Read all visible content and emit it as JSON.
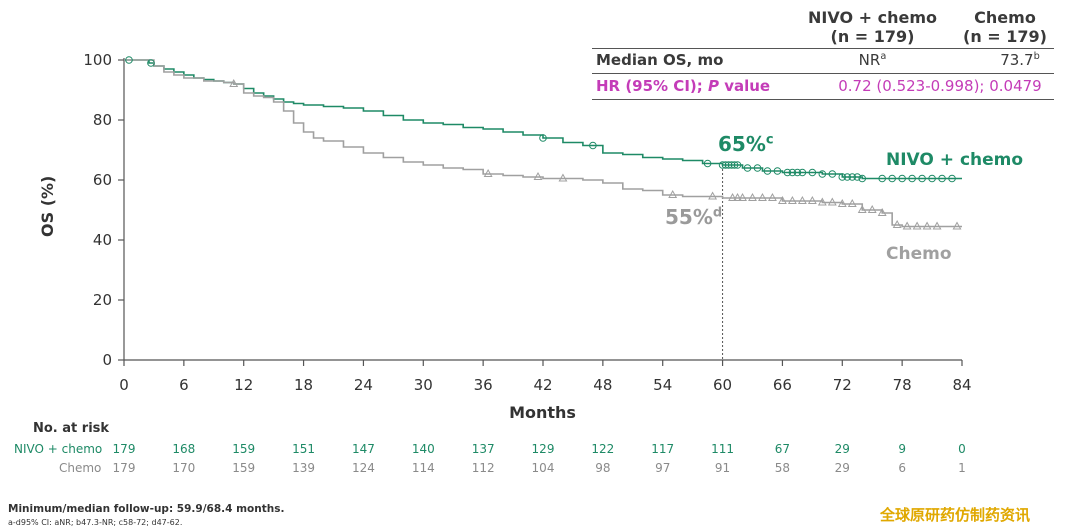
{
  "table": {
    "col1_line1": "NIVO + chemo",
    "col1_line2": "(n = 179)",
    "col2_line1": "Chemo",
    "col2_line2": "(n = 179)",
    "row1_label": "Median OS, mo",
    "row1_nivo": "NR",
    "row1_nivo_sup": "a",
    "row1_chemo": "73.7",
    "row1_chemo_sup": "b",
    "row2_label_a": "HR (95% CI); ",
    "row2_label_p": "P",
    "row2_label_b": " value",
    "row2_value": "0.72 (0.523-0.998); 0.0479"
  },
  "annotations": {
    "nivo_pct": "65%",
    "nivo_sup": "c",
    "chemo_pct": "55%",
    "chemo_sup": "d",
    "nivo_label": "NIVO + chemo",
    "chemo_label": "Chemo"
  },
  "risk_table": {
    "title": "No. at risk",
    "rows": [
      {
        "label": "NIVO + chemo",
        "values": [
          "179",
          "168",
          "159",
          "151",
          "147",
          "140",
          "137",
          "129",
          "122",
          "117",
          "111",
          "67",
          "29",
          "9",
          "0"
        ]
      },
      {
        "label": "Chemo",
        "values": [
          "179",
          "170",
          "159",
          "139",
          "124",
          "114",
          "112",
          "104",
          "98",
          "97",
          "91",
          "58",
          "29",
          "6",
          "1"
        ]
      }
    ]
  },
  "footnotes": {
    "line1": "Minimum/median follow-up: 59.9/68.4 months.",
    "line2": "a-d95% CI: aNR; b47.3-NR; c58-72; d47-62."
  },
  "watermark": "全球原研药仿制药资讯",
  "chart_data": {
    "type": "line",
    "xlabel": "Months",
    "ylabel": "OS (%)",
    "xlim": [
      0,
      84
    ],
    "ylim": [
      0,
      100
    ],
    "x_ticks": [
      "0",
      "6",
      "12",
      "18",
      "24",
      "30",
      "36",
      "42",
      "48",
      "54",
      "60",
      "66",
      "72",
      "78",
      "84"
    ],
    "y_ticks": [
      "0",
      "20",
      "40",
      "60",
      "80",
      "100"
    ],
    "reference_x": 60,
    "grid": false,
    "series": [
      {
        "name": "NIVO + chemo",
        "color": "#1e8a66",
        "marker": "circle",
        "points": [
          [
            0,
            100
          ],
          [
            1,
            100
          ],
          [
            2.5,
            99
          ],
          [
            3,
            98
          ],
          [
            4,
            97
          ],
          [
            5,
            96
          ],
          [
            6,
            95
          ],
          [
            7,
            94
          ],
          [
            8,
            93.5
          ],
          [
            9,
            93
          ],
          [
            10,
            92.5
          ],
          [
            11,
            92
          ],
          [
            12,
            90.5
          ],
          [
            13,
            89
          ],
          [
            14,
            88
          ],
          [
            15,
            87
          ],
          [
            16,
            86
          ],
          [
            17,
            85.5
          ],
          [
            18,
            85
          ],
          [
            20,
            84.5
          ],
          [
            22,
            84
          ],
          [
            24,
            83
          ],
          [
            26,
            81.5
          ],
          [
            28,
            80
          ],
          [
            30,
            79
          ],
          [
            32,
            78.5
          ],
          [
            34,
            77.5
          ],
          [
            36,
            77
          ],
          [
            38,
            76
          ],
          [
            40,
            75
          ],
          [
            42,
            74
          ],
          [
            44,
            72.5
          ],
          [
            46,
            71.5
          ],
          [
            48,
            69
          ],
          [
            50,
            68.5
          ],
          [
            52,
            67.5
          ],
          [
            54,
            67
          ],
          [
            56,
            66.5
          ],
          [
            58,
            65.5
          ],
          [
            60,
            65
          ],
          [
            62,
            64
          ],
          [
            64,
            63
          ],
          [
            66,
            62.5
          ],
          [
            70,
            62
          ],
          [
            72,
            61
          ],
          [
            74,
            60.5
          ],
          [
            84,
            60.5
          ]
        ],
        "censor_x": [
          0.5,
          2.7,
          42,
          47,
          58.5,
          60,
          60.3,
          60.6,
          60.9,
          61.2,
          61.5,
          62.5,
          63.5,
          64.5,
          65.5,
          66.5,
          67,
          67.5,
          68,
          69,
          70,
          71,
          72,
          72.5,
          73,
          73.5,
          74,
          76,
          77,
          78,
          79,
          80,
          81,
          82,
          83
        ]
      },
      {
        "name": "Chemo",
        "color": "#a0a0a0",
        "marker": "triangle",
        "points": [
          [
            0,
            100
          ],
          [
            2,
            100
          ],
          [
            3,
            98
          ],
          [
            4,
            96
          ],
          [
            5,
            95
          ],
          [
            6,
            94
          ],
          [
            8,
            93
          ],
          [
            10,
            92.5
          ],
          [
            11,
            92
          ],
          [
            12,
            89
          ],
          [
            13,
            88
          ],
          [
            14,
            87.5
          ],
          [
            15,
            86
          ],
          [
            16,
            83
          ],
          [
            17,
            79
          ],
          [
            18,
            76
          ],
          [
            19,
            74
          ],
          [
            20,
            73
          ],
          [
            22,
            71
          ],
          [
            24,
            69
          ],
          [
            26,
            67.5
          ],
          [
            28,
            66
          ],
          [
            30,
            65
          ],
          [
            32,
            64
          ],
          [
            34,
            63.5
          ],
          [
            36,
            62
          ],
          [
            38,
            61.5
          ],
          [
            40,
            61
          ],
          [
            42,
            60.5
          ],
          [
            44,
            60.5
          ],
          [
            46,
            60
          ],
          [
            48,
            59
          ],
          [
            50,
            57
          ],
          [
            52,
            56.5
          ],
          [
            54,
            55
          ],
          [
            56,
            54.5
          ],
          [
            58,
            54.5
          ],
          [
            60,
            54
          ],
          [
            62,
            54
          ],
          [
            66,
            53
          ],
          [
            70,
            52.5
          ],
          [
            72,
            52
          ],
          [
            74,
            50
          ],
          [
            76,
            49
          ],
          [
            77,
            45
          ],
          [
            78,
            44.5
          ],
          [
            84,
            44.5
          ]
        ],
        "censor_x": [
          11,
          36.5,
          41.5,
          44,
          55,
          59,
          61,
          61.5,
          62,
          63,
          64,
          65,
          66,
          67,
          68,
          69,
          70,
          71,
          72,
          73,
          74,
          75,
          76,
          77.5,
          78.5,
          79.5,
          80.5,
          81.5,
          83.5
        ]
      }
    ]
  }
}
